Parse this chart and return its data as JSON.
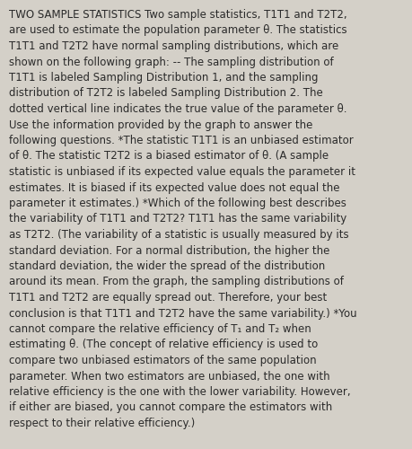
{
  "background_color": "#d4d0c8",
  "text_color": "#2a2a2a",
  "font_size": 8.5,
  "font_family": "DejaVu Sans",
  "lines": [
    "TWO SAMPLE STATISTICS Two sample statistics, T1T1 and T2T2,",
    "are used to estimate the population parameter θ. The statistics",
    "T1T1 and T2T2 have normal sampling distributions, which are",
    "shown on the following graph: -- The sampling distribution of",
    "T1T1 is labeled Sampling Distribution 1, and the sampling",
    "distribution of T2T2 is labeled Sampling Distribution 2. The",
    "dotted vertical line indicates the true value of the parameter θ.",
    "Use the information provided by the graph to answer the",
    "following questions. *The statistic T1T1 is an unbiased estimator",
    "of θ. The statistic T2T2 is a biased estimator of θ. (A sample",
    "statistic is unbiased if its expected value equals the parameter it",
    "estimates. It is biased if its expected value does not equal the",
    "parameter it estimates.) *Which of the following best describes",
    "the variability of T1T1 and T2T2? T1T1 has the same variability",
    "as T2T2. (The variability of a statistic is usually measured by its",
    "standard deviation. For a normal distribution, the higher the",
    "standard deviation, the wider the spread of the distribution",
    "around its mean. From the graph, the sampling distributions of",
    "T1T1 and T2T2 are equally spread out. Therefore, your best",
    "conclusion is that T1T1 and T2T2 have the same variability.) *You",
    "cannot compare the relative efficiency of T₁ and T₂ when",
    "estimating θ. (The concept of relative efficiency is used to",
    "compare two unbiased estimators of the same population",
    "parameter. When two estimators are unbiased, the one with",
    "relative efficiency is the one with the lower variability. However,",
    "if either are biased, you cannot compare the estimators with",
    "respect to their relative efficiency.)"
  ]
}
